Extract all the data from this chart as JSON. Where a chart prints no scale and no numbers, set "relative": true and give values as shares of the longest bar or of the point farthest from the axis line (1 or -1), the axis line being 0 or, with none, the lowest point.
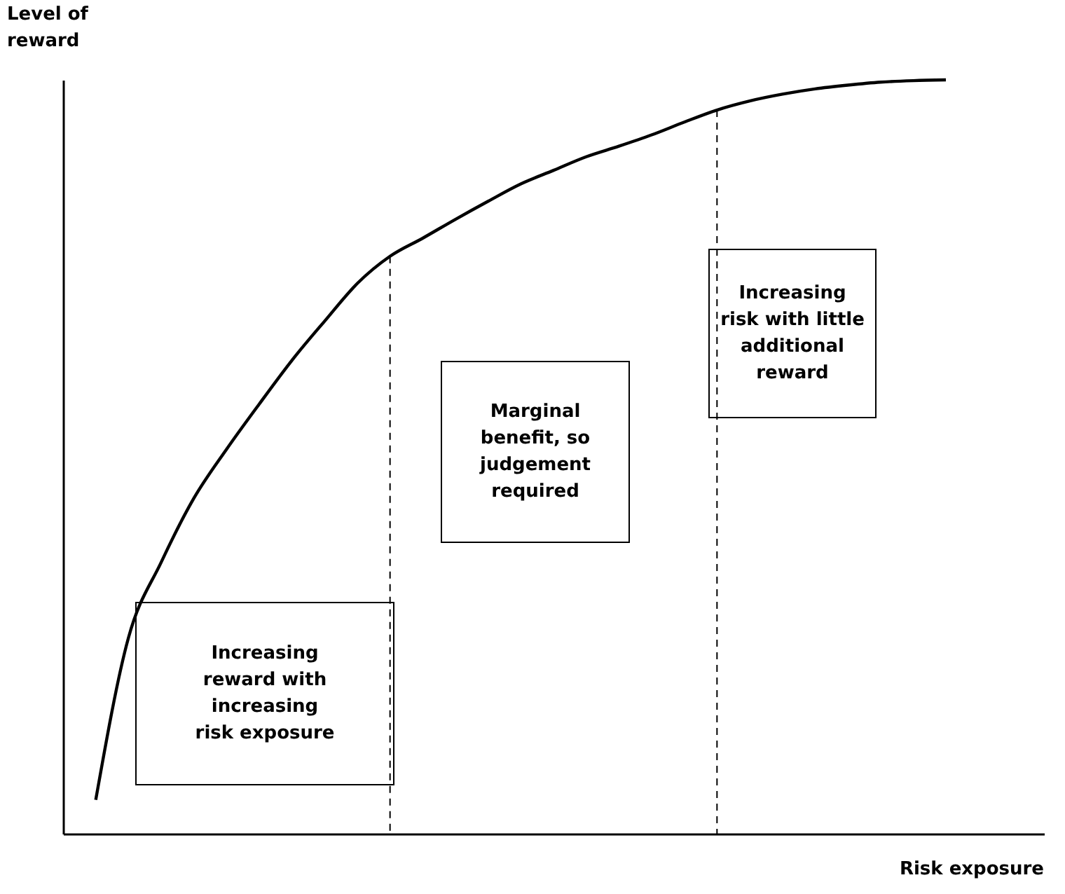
{
  "chart_data": {
    "type": "line",
    "relative": true,
    "xlabel": "Risk exposure",
    "ylabel": "Level of reward",
    "categories": [
      null,
      null,
      null,
      null,
      null,
      null,
      null,
      null,
      null,
      null,
      null,
      null,
      null,
      null,
      null,
      null,
      null,
      null,
      null,
      null,
      null,
      null,
      null,
      null,
      null,
      null,
      null,
      null,
      null,
      null,
      null
    ],
    "marker": "none",
    "line_style": "solid",
    "series": [
      {
        "color": "#000000",
        "values": [
          null,
          0.045,
          0.26,
          0.36,
          0.445,
          0.51,
          0.57,
          0.628,
          0.68,
          0.73,
          0.766,
          0.79,
          0.815,
          0.839,
          0.862,
          0.88,
          0.898,
          0.912,
          0.927,
          0.944,
          0.96,
          0.972,
          0.981,
          0.988,
          0.993,
          0.997,
          0.999,
          1.0,
          null,
          null,
          null
        ]
      }
    ],
    "annotations": [
      "Increasing\nreward with\nincreasing\nrisk exposure",
      "Marginal\nbenefit, so\njudgement\nrequired",
      "Increasing\nrisk with little\nadditional\nreward"
    ]
  }
}
